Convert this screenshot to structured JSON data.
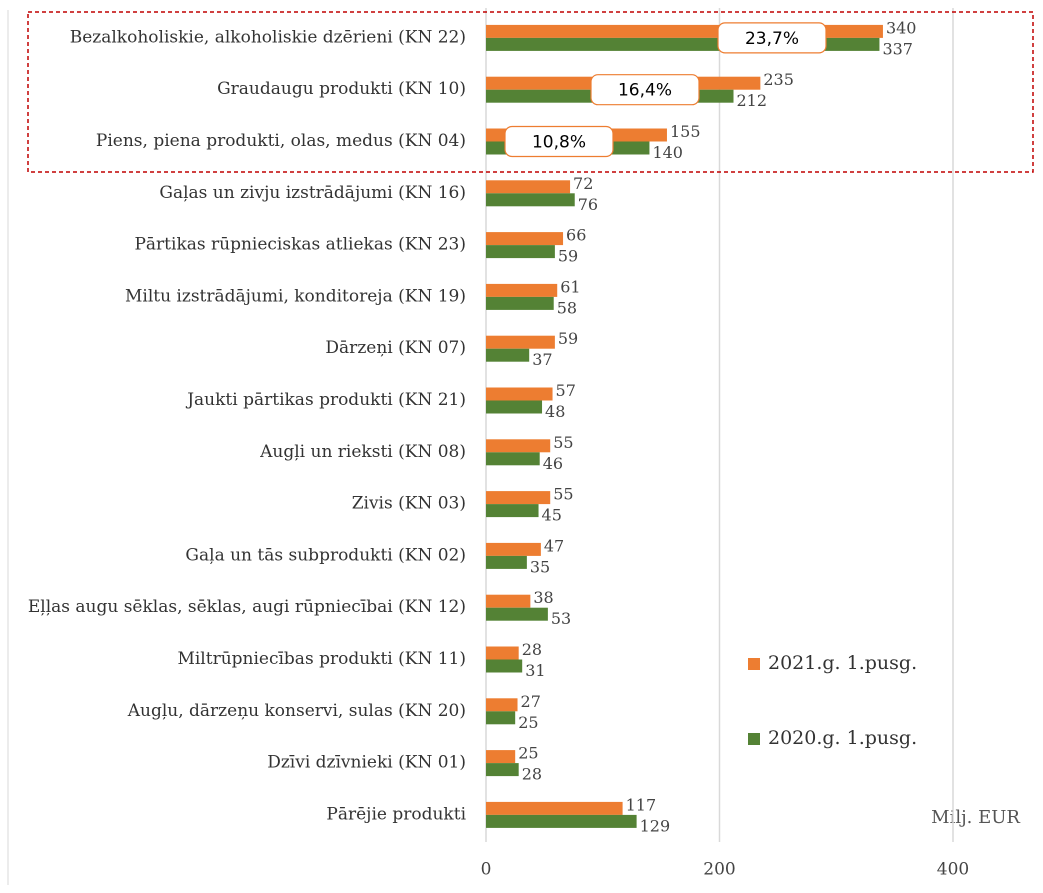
{
  "chart_data": {
    "type": "bar",
    "orientation": "horizontal",
    "categories": [
      "Bezalkoholiskie, alkoholiskie dzērieni (KN 22)",
      "Graudaugu produkti (KN 10)",
      "Piens, piena produkti, olas, medus (KN 04)",
      "Gaļas un zivju izstrādājumi (KN 16)",
      "Pārtikas rūpnieciskas atliekas (KN 23)",
      "Miltu izstrādājumi, konditoreja (KN 19)",
      "Dārzeņi (KN 07)",
      "Jaukti pārtikas produkti (KN 21)",
      "Augļi un rieksti (KN 08)",
      "Zivis (KN 03)",
      "Gaļa un tās subprodukti (KN 02)",
      "Eļļas augu sēklas, sēklas, augi rūpniecībai (KN 12)",
      "Miltrūpniecības produkti (KN 11)",
      "Augļu, dārzeņu konservi, sulas (KN 20)",
      "Dzīvi dzīvnieki (KN 01)",
      "Pārējie produkti"
    ],
    "series": [
      {
        "name": "2021.g. 1.pusg.",
        "color": "#ED7D31",
        "values": [
          340,
          235,
          155,
          72,
          66,
          61,
          59,
          57,
          55,
          55,
          47,
          38,
          28,
          27,
          25,
          117
        ]
      },
      {
        "name": "2020.g. 1.pusg.",
        "color": "#548235",
        "values": [
          337,
          212,
          140,
          76,
          59,
          58,
          37,
          48,
          46,
          45,
          35,
          53,
          31,
          25,
          28,
          129
        ]
      }
    ],
    "annotations": [
      "23,7%",
      "16,4%",
      "10,8%"
    ],
    "unit_label": "Milj. EUR",
    "xlim": [
      0,
      466
    ],
    "xticks": [
      0,
      200,
      400
    ],
    "grid": true,
    "legend": "right"
  }
}
